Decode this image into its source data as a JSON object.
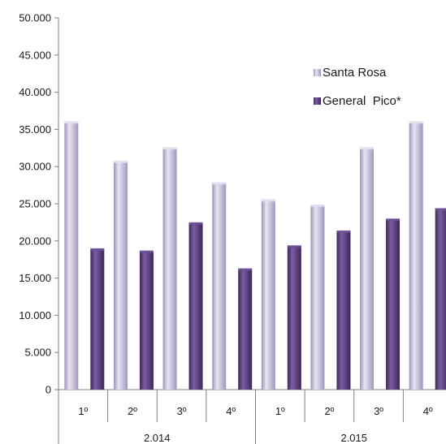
{
  "chart_data": {
    "type": "bar",
    "groups": [
      {
        "label": "2.014",
        "categories": [
          "1º",
          "2º",
          "3º",
          "4º"
        ]
      },
      {
        "label": "2.015",
        "categories": [
          "1º",
          "2º",
          "3º",
          "4º"
        ]
      }
    ],
    "series": [
      {
        "name": "Santa Rosa",
        "color": "#bcb2d2",
        "values": [
          36000,
          30700,
          32500,
          27800,
          25500,
          24800,
          32500,
          36000
        ]
      },
      {
        "name": "General  Pico*",
        "color": "#5a3f7c",
        "values": [
          18900,
          18600,
          22400,
          16200,
          19300,
          21300,
          22900,
          24300
        ]
      }
    ],
    "ylim": [
      0,
      50000
    ],
    "yticks": [
      "0",
      "5.000",
      "10.000",
      "15.000",
      "20.000",
      "25.000",
      "30.000",
      "35.000",
      "40.000",
      "45.000",
      "50.000"
    ],
    "legend_position": "top-right",
    "grid": false
  }
}
